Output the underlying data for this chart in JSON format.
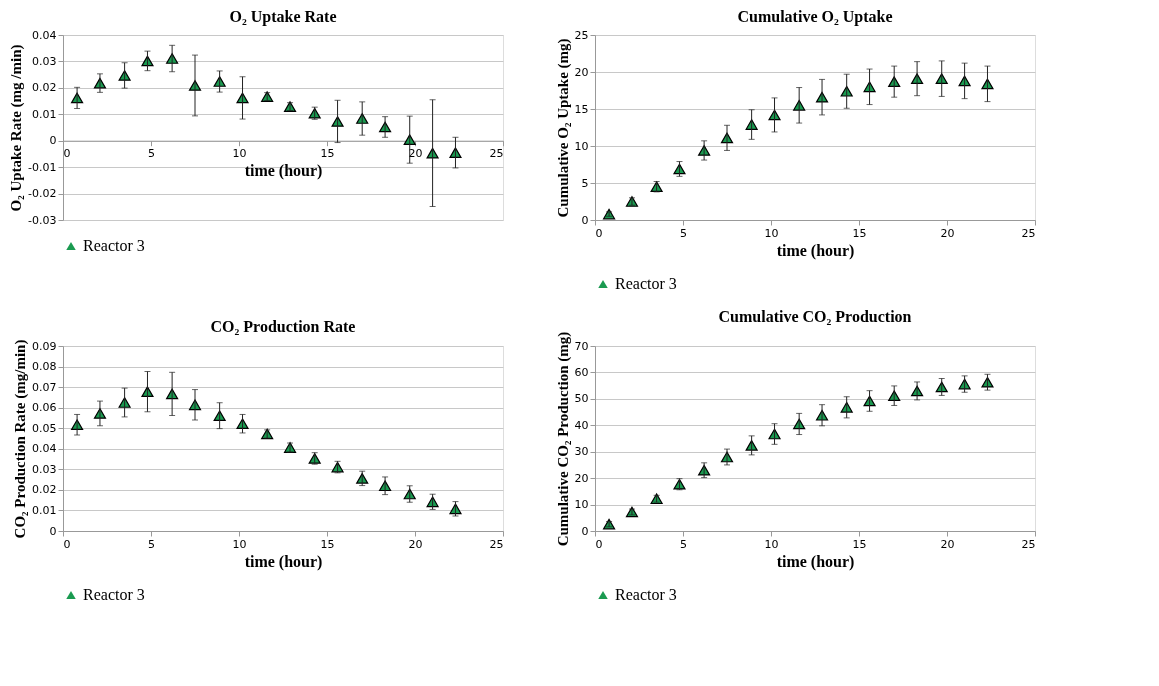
{
  "chart_data": [
    {
      "type": "scatter",
      "title": "O₂ Uptake Rate",
      "xlabel": "time (hour)",
      "ylabel": "O₂ Uptake Rate (mg /min)",
      "x": [
        0.8,
        2.1,
        3.5,
        4.8,
        6.2,
        7.5,
        8.9,
        10.2,
        11.6,
        12.9,
        14.3,
        15.6,
        17.0,
        18.3,
        19.7,
        21.0,
        22.3
      ],
      "series": [
        {
          "name": "Reactor 3",
          "color": "#1a9a50",
          "values": [
            0.0162,
            0.0218,
            0.0247,
            0.0302,
            0.0311,
            0.0209,
            0.0224,
            0.0162,
            0.0167,
            0.0129,
            0.0104,
            0.0073,
            0.0084,
            0.0052,
            0.0004,
            -0.0047,
            -0.0045
          ],
          "errors": [
            0.004,
            0.0035,
            0.0048,
            0.0037,
            0.005,
            0.0115,
            0.004,
            0.008,
            0.0015,
            0.0015,
            0.0023,
            0.008,
            0.0063,
            0.0039,
            0.0089,
            0.0202,
            0.0058
          ]
        }
      ],
      "xlim": [
        0,
        25
      ],
      "xticks": [
        0,
        5,
        10,
        15,
        20,
        25
      ],
      "ylim": [
        -0.03,
        0.04
      ],
      "yticks": [
        -0.03,
        -0.02,
        -0.01,
        0,
        0.01,
        0.02,
        0.03,
        0.04
      ],
      "grid": "y",
      "legend": "bottom",
      "marker": "triangle"
    },
    {
      "type": "scatter",
      "title": "Cumulative O₂ Uptake",
      "xlabel": "time (hour)",
      "ylabel": "Cumulative O₂ Uptake (mg)",
      "x": [
        0.8,
        2.1,
        3.5,
        4.8,
        6.2,
        7.5,
        8.9,
        10.2,
        11.6,
        12.9,
        14.3,
        15.6,
        17.0,
        18.3,
        19.7,
        21.0,
        22.3
      ],
      "series": [
        {
          "name": "Reactor 3",
          "color": "#1a9a50",
          "values": [
            0.8,
            2.5,
            4.5,
            6.9,
            9.4,
            11.1,
            12.9,
            14.2,
            15.5,
            16.6,
            17.4,
            18.0,
            18.7,
            19.1,
            19.1,
            18.8,
            18.4
          ],
          "errors": [
            0.3,
            0.5,
            0.7,
            1.0,
            1.3,
            1.7,
            2.0,
            2.3,
            2.4,
            2.4,
            2.3,
            2.4,
            2.1,
            2.3,
            2.4,
            2.4,
            2.4
          ]
        }
      ],
      "xlim": [
        0,
        25
      ],
      "xticks": [
        0,
        5,
        10,
        15,
        20,
        25
      ],
      "ylim": [
        0,
        25
      ],
      "yticks": [
        0,
        5,
        10,
        15,
        20,
        25
      ],
      "grid": "y",
      "legend": "bottom",
      "marker": "triangle"
    },
    {
      "type": "scatter",
      "title": "CO₂ Production Rate",
      "xlabel": "time (hour)",
      "ylabel": "CO₂ Production Rate (mg/min)",
      "x": [
        0.8,
        2.1,
        3.5,
        4.8,
        6.2,
        7.5,
        8.9,
        10.2,
        11.6,
        12.9,
        14.3,
        15.6,
        17.0,
        18.3,
        19.7,
        21.0,
        22.3
      ],
      "series": [
        {
          "name": "Reactor 3",
          "color": "#1a9a50",
          "values": [
            0.0517,
            0.0572,
            0.0625,
            0.0678,
            0.0667,
            0.0614,
            0.0561,
            0.0522,
            0.0472,
            0.0406,
            0.0353,
            0.0311,
            0.0256,
            0.022,
            0.018,
            0.0142,
            0.0108
          ],
          "errors": [
            0.005,
            0.006,
            0.007,
            0.0098,
            0.0105,
            0.0074,
            0.0063,
            0.0045,
            0.002,
            0.0022,
            0.0028,
            0.0028,
            0.0035,
            0.0043,
            0.004,
            0.0037,
            0.0035
          ]
        }
      ],
      "xlim": [
        0,
        25
      ],
      "xticks": [
        0,
        5,
        10,
        15,
        20,
        25
      ],
      "ylim": [
        0,
        0.09
      ],
      "yticks": [
        0,
        0.01,
        0.02,
        0.03,
        0.04,
        0.05,
        0.06,
        0.07,
        0.08,
        0.09
      ],
      "grid": "y",
      "legend": "bottom",
      "marker": "triangle"
    },
    {
      "type": "scatter",
      "title": "Cumulative CO₂ Production",
      "xlabel": "time (hour)",
      "ylabel": "Cumulative CO₂ Production  (mg)",
      "x": [
        0.8,
        2.1,
        3.5,
        4.8,
        6.2,
        7.5,
        8.9,
        10.2,
        11.6,
        12.9,
        14.3,
        15.6,
        17.0,
        18.3,
        19.7,
        21.0,
        22.3
      ],
      "series": [
        {
          "name": "Reactor 3",
          "color": "#1a9a50",
          "values": [
            2.6,
            7.2,
            12.2,
            17.7,
            23.0,
            28.0,
            32.4,
            36.7,
            40.5,
            43.8,
            46.8,
            49.2,
            51.2,
            53.0,
            54.5,
            55.6,
            56.3
          ],
          "errors": [
            1.0,
            1.1,
            1.3,
            2.1,
            2.8,
            3.0,
            3.6,
            3.9,
            4.0,
            4.0,
            4.0,
            3.9,
            3.7,
            3.4,
            3.2,
            3.1,
            3.0
          ]
        }
      ],
      "xlim": [
        0,
        25
      ],
      "xticks": [
        0,
        5,
        10,
        15,
        20,
        25
      ],
      "ylim": [
        0,
        70
      ],
      "yticks": [
        0,
        10,
        20,
        30,
        40,
        50,
        60,
        70
      ],
      "grid": "y",
      "legend": "bottom",
      "marker": "triangle"
    }
  ]
}
